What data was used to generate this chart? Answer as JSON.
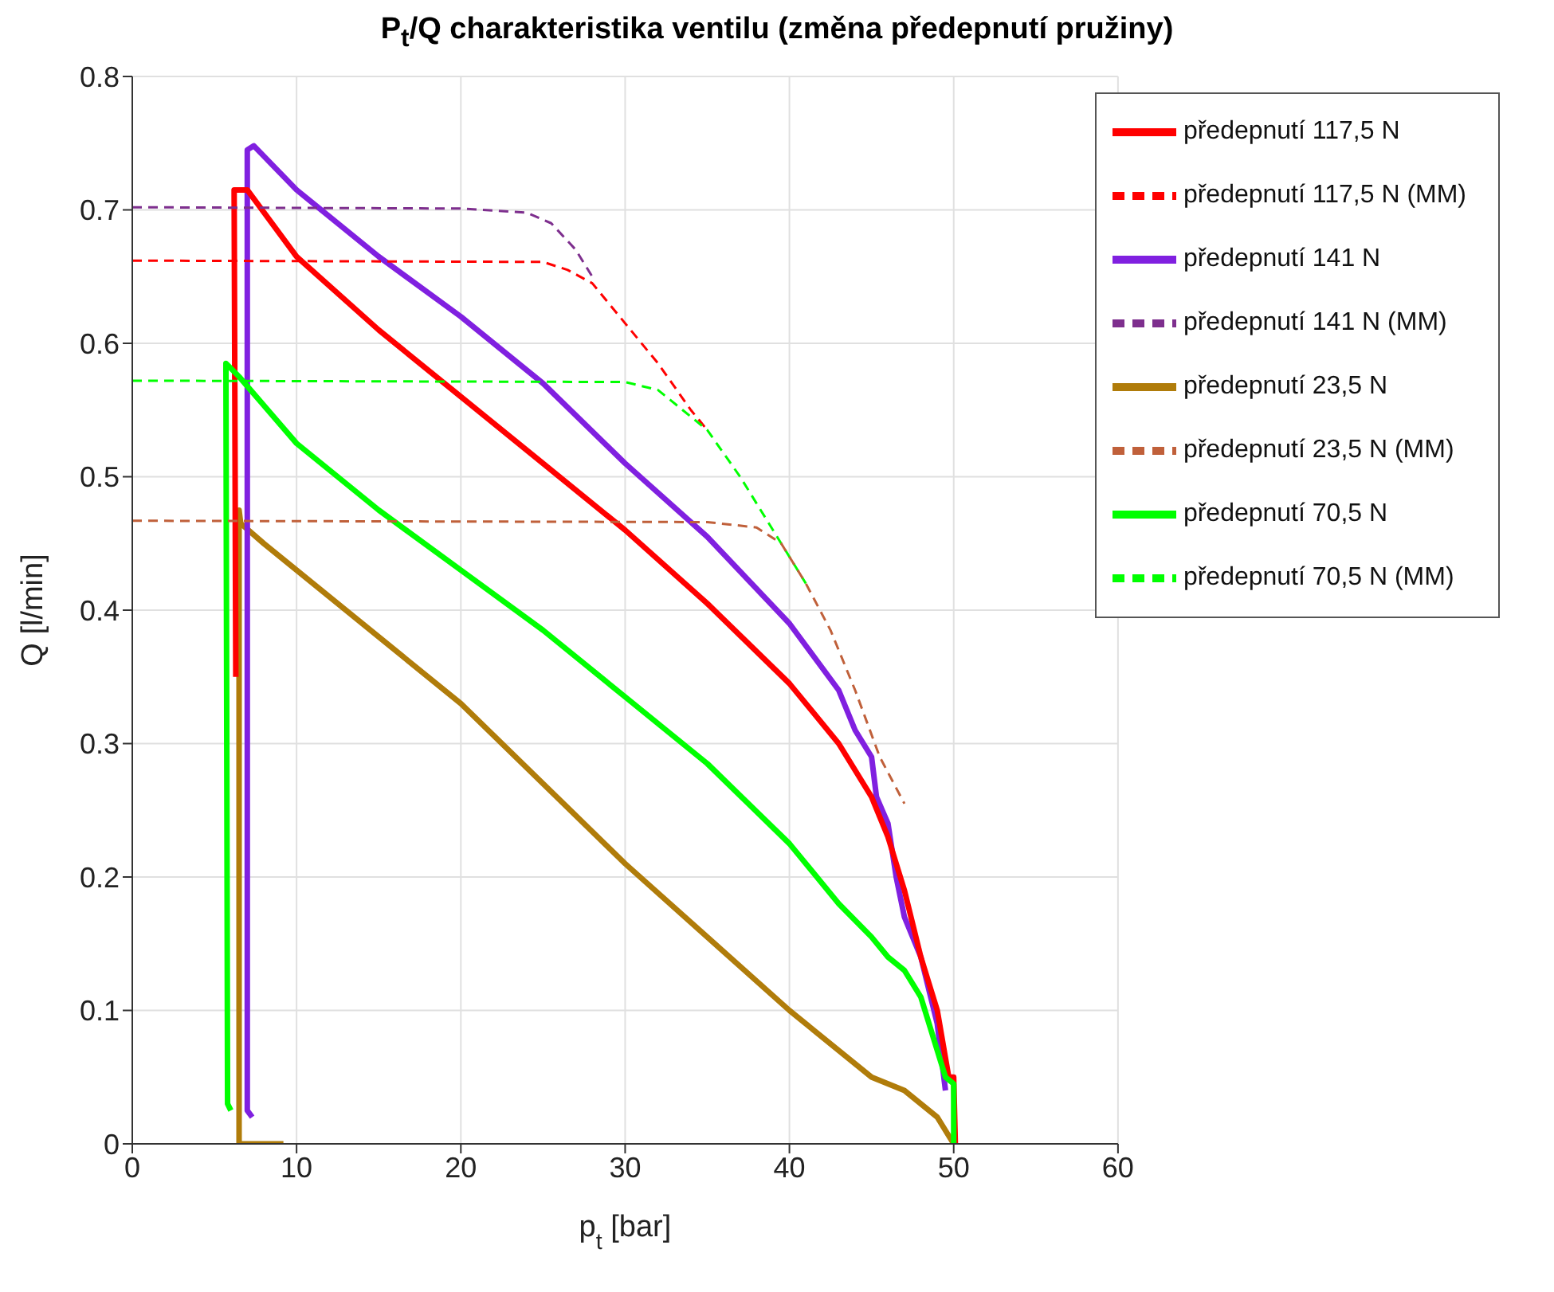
{
  "chart_data": {
    "type": "line",
    "title": "P$_{t}$/Q charakteristika ventilu  (změna předepnutí pružiny)",
    "xlabel": "p$_{t}$ [bar]",
    "ylabel": "Q [l/min]",
    "xlim": [
      0,
      60
    ],
    "xticks": [
      0,
      10,
      20,
      30,
      40,
      50,
      60
    ],
    "ylim": [
      0,
      0.8
    ],
    "yticks": [
      0,
      0.1,
      0.2,
      0.3,
      0.4,
      0.5,
      0.6,
      0.7,
      0.8
    ],
    "grid": true,
    "legend": "top right",
    "marker": "none",
    "series": [
      {
        "name": "předepnutí 23,5 N",
        "color": "#b07c0a",
        "line_style": "solid",
        "x": [
          9.2,
          6.5,
          6.5,
          6.6,
          8,
          10,
          15,
          20,
          25,
          30,
          35,
          40,
          45,
          47,
          49,
          50
        ],
        "values": [
          0,
          0,
          0.475,
          0.465,
          0.45,
          0.43,
          0.38,
          0.33,
          0.27,
          0.21,
          0.155,
          0.1,
          0.05,
          0.04,
          0.02,
          0
        ]
      },
      {
        "name": "předepnutí 141 N",
        "color": "#8020e0",
        "line_style": "solid",
        "x": [
          7.3,
          7.0,
          7.0,
          7.4,
          10,
          15,
          20,
          25,
          30,
          35,
          40,
          43,
          44,
          45,
          45.3,
          46,
          46.5,
          47,
          48,
          49,
          49.5
        ],
        "values": [
          0.02,
          0.025,
          0.745,
          0.748,
          0.715,
          0.665,
          0.62,
          0.57,
          0.51,
          0.455,
          0.39,
          0.34,
          0.31,
          0.29,
          0.26,
          0.24,
          0.2,
          0.17,
          0.14,
          0.09,
          0.04
        ]
      },
      {
        "name": "předepnutí 117,5 N",
        "color": "#ff0000",
        "line_style": "solid",
        "x": [
          6.3,
          6.2,
          7,
          10,
          15,
          20,
          25,
          30,
          35,
          40,
          43,
          45,
          46,
          47,
          48,
          49,
          49.7,
          50,
          50.1
        ],
        "values": [
          0.35,
          0.715,
          0.715,
          0.665,
          0.61,
          0.56,
          0.51,
          0.46,
          0.405,
          0.345,
          0.3,
          0.26,
          0.23,
          0.19,
          0.14,
          0.1,
          0.05,
          0.05,
          0
        ]
      },
      {
        "name": "předepnutí 70,5 N",
        "color": "#00ff00",
        "line_style": "solid",
        "x": [
          6,
          5.8,
          5.7,
          6.5,
          10,
          15,
          20,
          25,
          30,
          35,
          40,
          43,
          45,
          46,
          47,
          48,
          49,
          49.5,
          50,
          50
        ],
        "values": [
          0.025,
          0.03,
          0.585,
          0.575,
          0.525,
          0.475,
          0.43,
          0.385,
          0.335,
          0.285,
          0.225,
          0.18,
          0.155,
          0.14,
          0.13,
          0.11,
          0.07,
          0.05,
          0.045,
          0
        ]
      },
      {
        "name": "předepnutí 141 N (MM)",
        "color": "#7e2f8e",
        "line_style": "dashed",
        "x": [
          0,
          20,
          24,
          25.5,
          27,
          28
        ],
        "values": [
          0.702,
          0.701,
          0.698,
          0.69,
          0.67,
          0.65
        ]
      },
      {
        "name": "předepnutí 117,5 N (MM)",
        "color": "#ff0000",
        "line_style": "dashed",
        "x": [
          0,
          25,
          26.5,
          28,
          30,
          32,
          34,
          35
        ],
        "values": [
          0.662,
          0.661,
          0.655,
          0.645,
          0.615,
          0.585,
          0.55,
          0.535
        ]
      },
      {
        "name": "předepnutí 70,5 N (MM)",
        "color": "#00ff00",
        "line_style": "dashed",
        "x": [
          0,
          30,
          32,
          33.5,
          35,
          37,
          39,
          40,
          41
        ],
        "values": [
          0.572,
          0.571,
          0.565,
          0.55,
          0.535,
          0.5,
          0.46,
          0.44,
          0.42
        ]
      },
      {
        "name": "předepnutí 23,5 N (MM)",
        "color": "#c0603a",
        "line_style": "dashed",
        "x": [
          0,
          35,
          38,
          39.5,
          41,
          42.5,
          44,
          45.5,
          47
        ],
        "values": [
          0.467,
          0.466,
          0.462,
          0.45,
          0.42,
          0.385,
          0.34,
          0.29,
          0.255
        ]
      }
    ]
  }
}
